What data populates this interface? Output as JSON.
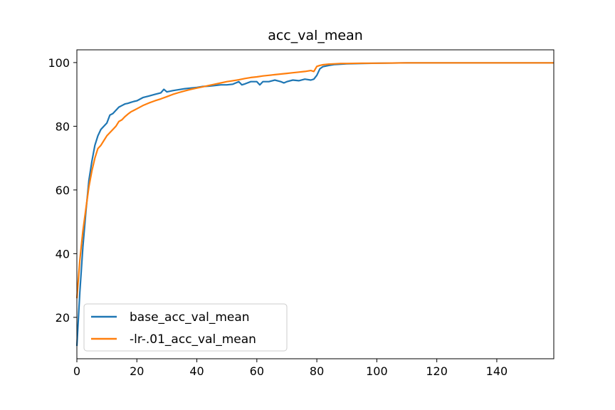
{
  "chart_data": {
    "type": "line",
    "title": "acc_val_mean",
    "xlabel": "",
    "ylabel": "",
    "xlim": [
      0,
      159
    ],
    "ylim": [
      7,
      104
    ],
    "x_ticks": [
      0,
      20,
      40,
      60,
      80,
      100,
      120,
      140
    ],
    "y_ticks": [
      20,
      40,
      60,
      80,
      100
    ],
    "grid": false,
    "legend_position": "lower-left",
    "series": [
      {
        "name": "base_acc_val_mean",
        "color": "#1f77b4",
        "points": [
          [
            0,
            11
          ],
          [
            1,
            28
          ],
          [
            2,
            42
          ],
          [
            3,
            53
          ],
          [
            4,
            63
          ],
          [
            5,
            69
          ],
          [
            6,
            74
          ],
          [
            7,
            77
          ],
          [
            8,
            79
          ],
          [
            9,
            80
          ],
          [
            10,
            81
          ],
          [
            11,
            83.5
          ],
          [
            12,
            84
          ],
          [
            13,
            85
          ],
          [
            14,
            86
          ],
          [
            15,
            86.5
          ],
          [
            16,
            87
          ],
          [
            17,
            87.2
          ],
          [
            18,
            87.5
          ],
          [
            19,
            87.8
          ],
          [
            20,
            88
          ],
          [
            22,
            89
          ],
          [
            24,
            89.5
          ],
          [
            26,
            90
          ],
          [
            28,
            90.5
          ],
          [
            29,
            91.6
          ],
          [
            30,
            90.8
          ],
          [
            32,
            91.2
          ],
          [
            34,
            91.5
          ],
          [
            36,
            91.8
          ],
          [
            38,
            92
          ],
          [
            40,
            92.2
          ],
          [
            42,
            92.5
          ],
          [
            44,
            92.6
          ],
          [
            46,
            92.8
          ],
          [
            48,
            93
          ],
          [
            50,
            93
          ],
          [
            52,
            93.2
          ],
          [
            54,
            94
          ],
          [
            55,
            93
          ],
          [
            56,
            93.3
          ],
          [
            58,
            94
          ],
          [
            60,
            94
          ],
          [
            61,
            93
          ],
          [
            62,
            94
          ],
          [
            64,
            94
          ],
          [
            66,
            94.5
          ],
          [
            68,
            94
          ],
          [
            69,
            93.6
          ],
          [
            70,
            94
          ],
          [
            72,
            94.5
          ],
          [
            74,
            94.3
          ],
          [
            76,
            94.8
          ],
          [
            78,
            94.5
          ],
          [
            79,
            94.8
          ],
          [
            80,
            96
          ],
          [
            81,
            98
          ],
          [
            82,
            98.7
          ],
          [
            84,
            99.1
          ],
          [
            86,
            99.4
          ],
          [
            88,
            99.5
          ],
          [
            90,
            99.6
          ],
          [
            95,
            99.7
          ],
          [
            100,
            99.8
          ],
          [
            110,
            99.9
          ],
          [
            120,
            99.9
          ],
          [
            130,
            99.9
          ],
          [
            140,
            99.9
          ],
          [
            150,
            99.9
          ],
          [
            159,
            99.9
          ]
        ]
      },
      {
        "name": "-lr-.01_acc_val_mean",
        "color": "#ff7f0e",
        "points": [
          [
            0,
            26
          ],
          [
            1,
            38
          ],
          [
            2,
            47
          ],
          [
            3,
            54
          ],
          [
            4,
            61
          ],
          [
            5,
            66
          ],
          [
            6,
            70
          ],
          [
            7,
            73
          ],
          [
            8,
            74
          ],
          [
            9,
            75.5
          ],
          [
            10,
            77
          ],
          [
            11,
            78
          ],
          [
            12,
            79
          ],
          [
            13,
            80
          ],
          [
            14,
            81.5
          ],
          [
            15,
            82
          ],
          [
            16,
            83
          ],
          [
            17,
            83.8
          ],
          [
            18,
            84.5
          ],
          [
            19,
            85
          ],
          [
            20,
            85.5
          ],
          [
            22,
            86.5
          ],
          [
            24,
            87.3
          ],
          [
            26,
            88
          ],
          [
            28,
            88.6
          ],
          [
            30,
            89.3
          ],
          [
            32,
            90
          ],
          [
            34,
            90.6
          ],
          [
            36,
            91.1
          ],
          [
            38,
            91.6
          ],
          [
            40,
            92
          ],
          [
            42,
            92.4
          ],
          [
            44,
            92.8
          ],
          [
            46,
            93.2
          ],
          [
            48,
            93.6
          ],
          [
            50,
            94
          ],
          [
            52,
            94.3
          ],
          [
            54,
            94.6
          ],
          [
            56,
            95
          ],
          [
            58,
            95.3
          ],
          [
            60,
            95.5
          ],
          [
            62,
            95.8
          ],
          [
            64,
            96
          ],
          [
            66,
            96.2
          ],
          [
            68,
            96.4
          ],
          [
            70,
            96.6
          ],
          [
            72,
            96.8
          ],
          [
            74,
            97
          ],
          [
            76,
            97.2
          ],
          [
            78,
            97.5
          ],
          [
            79,
            97.2
          ],
          [
            80,
            98.8
          ],
          [
            81,
            99.1
          ],
          [
            82,
            99.3
          ],
          [
            84,
            99.5
          ],
          [
            86,
            99.6
          ],
          [
            88,
            99.7
          ],
          [
            90,
            99.7
          ],
          [
            95,
            99.8
          ],
          [
            100,
            99.8
          ],
          [
            110,
            99.9
          ],
          [
            120,
            99.9
          ],
          [
            130,
            99.9
          ],
          [
            140,
            99.9
          ],
          [
            150,
            99.9
          ],
          [
            159,
            99.9
          ]
        ]
      }
    ]
  }
}
